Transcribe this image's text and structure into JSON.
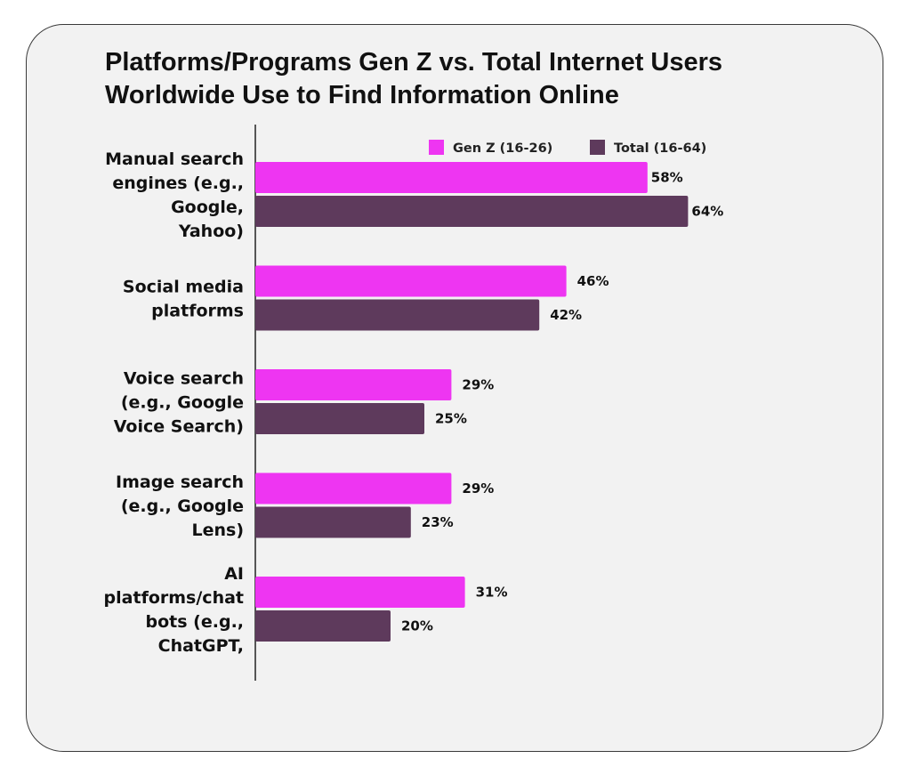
{
  "chart_data": {
    "type": "bar",
    "orientation": "horizontal",
    "title": "Platforms/Programs Gen Z vs. Total Internet Users Worldwide Use to Find Information Online",
    "categories": [
      "Manual search engines (e.g., Google, Yahoo)",
      "Social media platforms",
      "Voice search (e.g., Google Voice Search)",
      "Image search (e.g., Google Lens)",
      "AI platforms/chat bots (e.g., ChatGPT,"
    ],
    "category_lines": [
      [
        "Manual search",
        "engines (e.g.,",
        "Google,",
        "Yahoo)"
      ],
      [
        "Social media",
        "platforms"
      ],
      [
        "Voice search",
        "(e.g., Google",
        "Voice Search)"
      ],
      [
        "Image search",
        "(e.g., Google",
        "Lens)"
      ],
      [
        "AI",
        "platforms/chat",
        "bots (e.g.,",
        "ChatGPT,"
      ]
    ],
    "series": [
      {
        "name": "Gen Z (16-26)",
        "color": "#ee35f2",
        "values": [
          58,
          46,
          29,
          29,
          31
        ],
        "labels": [
          "58%",
          "46%",
          "29%",
          "29%",
          "31%"
        ]
      },
      {
        "name": "Total (16-64)",
        "color": "#5e3a5c",
        "values": [
          64,
          42,
          25,
          23,
          20
        ],
        "labels": [
          "64%",
          "42%",
          "25%",
          "23%",
          "20%"
        ]
      }
    ],
    "value_unit": "%",
    "xlabel": "",
    "ylabel": "",
    "legend_position": "top-right",
    "grid": false
  }
}
